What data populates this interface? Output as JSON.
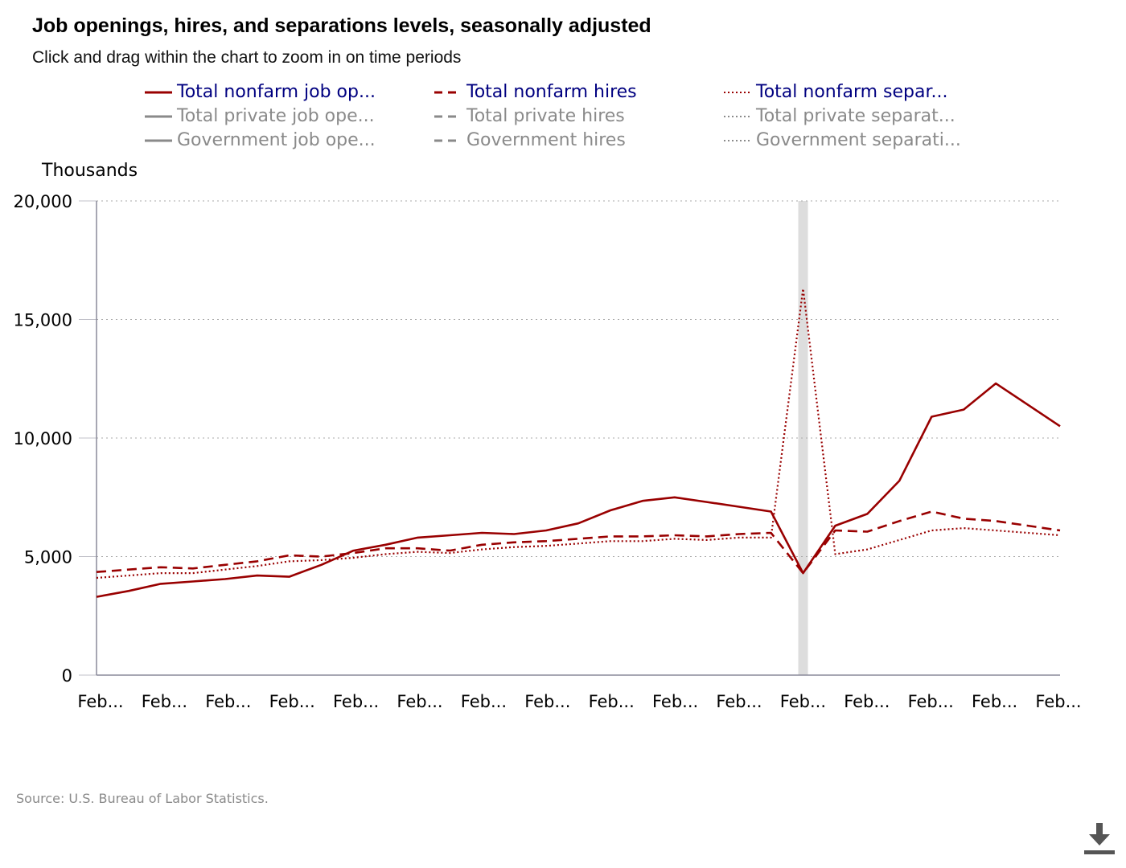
{
  "header": {
    "title": "Job openings, hires, and separations levels, seasonally adjusted",
    "subtitle": "Click and drag within the chart to zoom in on time periods"
  },
  "legend": [
    {
      "label": "Total nonfarm job op...",
      "dash": "solid",
      "active": true
    },
    {
      "label": "Total nonfarm hires",
      "dash": "dashed",
      "active": true
    },
    {
      "label": "Total nonfarm separ...",
      "dash": "dotted",
      "active": true
    },
    {
      "label": "Total private job ope...",
      "dash": "solid",
      "active": false
    },
    {
      "label": "Total private hires",
      "dash": "dashed",
      "active": false
    },
    {
      "label": "Total private separat...",
      "dash": "dotted",
      "active": false
    },
    {
      "label": "Government job ope...",
      "dash": "solid",
      "active": false
    },
    {
      "label": "Government hires",
      "dash": "dashed",
      "active": false
    },
    {
      "label": "Government separati...",
      "dash": "dotted",
      "active": false
    }
  ],
  "colors": {
    "series": "#990000",
    "active_legend": "#000080",
    "inactive_legend": "#8a8a8a",
    "recession": "#dddddd"
  },
  "footer": {
    "source": "Source: U.S. Bureau of Labor Statistics."
  },
  "icons": {
    "download": "download-icon"
  },
  "chart_data": {
    "type": "line",
    "ylabel": "Thousands",
    "ylim": [
      0,
      20000
    ],
    "yticks": [
      "0",
      "5,000",
      "10,000",
      "15,000",
      "20,000"
    ],
    "xticks": [
      "Feb...",
      "Feb...",
      "Feb...",
      "Feb...",
      "Feb...",
      "Feb...",
      "Feb...",
      "Feb...",
      "Feb...",
      "Feb...",
      "Feb...",
      "Feb...",
      "Feb...",
      "Feb...",
      "Feb...",
      "Feb..."
    ],
    "xlim": [
      2001.0,
      2016.0
    ],
    "grid": true,
    "recession": [
      2020.0,
      2020.17
    ],
    "series": [
      {
        "name": "Total nonfarm job openings",
        "dash": "solid",
        "x": [
          2001.0,
          2001.5,
          2002.0,
          2002.5,
          2003.0,
          2003.5,
          2004.0,
          2004.5,
          2005.0,
          2005.5,
          2006.0,
          2006.5,
          2007.0,
          2007.5,
          2008.0,
          2008.5,
          2009.0,
          2009.5,
          2010.0,
          2010.5,
          2011.0,
          2011.5,
          2012.0,
          2012.5,
          2013.0,
          2013.5,
          2014.0,
          2014.5,
          2015.0,
          2015.5,
          2016.0
        ],
        "y": [
          3300,
          3550,
          3850,
          3950,
          4050,
          4200,
          4150,
          4650,
          5250,
          5500,
          5800,
          5900,
          6000,
          5950,
          6100,
          6400,
          6950,
          7350,
          7500,
          7300,
          7100,
          6900,
          4300,
          6300,
          6800,
          8200,
          10900,
          11200,
          12300,
          11400,
          10500
        ]
      },
      {
        "name": "Total nonfarm hires",
        "dash": "dashed",
        "x": [
          2001.0,
          2001.5,
          2002.0,
          2002.5,
          2003.0,
          2003.5,
          2004.0,
          2004.5,
          2005.0,
          2005.5,
          2006.0,
          2006.5,
          2007.0,
          2007.5,
          2008.0,
          2008.5,
          2009.0,
          2009.5,
          2010.0,
          2010.5,
          2011.0,
          2011.5,
          2012.0,
          2012.5,
          2013.0,
          2013.5,
          2014.0,
          2014.5,
          2015.0,
          2015.5,
          2016.0
        ],
        "y": [
          4350,
          4450,
          4550,
          4500,
          4650,
          4800,
          5050,
          5000,
          5150,
          5350,
          5350,
          5250,
          5500,
          5600,
          5650,
          5750,
          5850,
          5850,
          5900,
          5850,
          5950,
          6000,
          4300,
          6100,
          6050,
          6500,
          6900,
          6600,
          6500,
          6300,
          6100
        ]
      },
      {
        "name": "Total nonfarm separations",
        "dash": "dotted",
        "x": [
          2001.0,
          2001.5,
          2002.0,
          2002.5,
          2003.0,
          2003.5,
          2004.0,
          2004.5,
          2005.0,
          2005.5,
          2006.0,
          2006.5,
          2007.0,
          2007.5,
          2008.0,
          2008.5,
          2009.0,
          2009.5,
          2010.0,
          2010.5,
          2011.0,
          2011.5,
          2012.0,
          2012.5,
          2013.0,
          2013.5,
          2014.0,
          2014.5,
          2015.0,
          2015.5,
          2016.0
        ],
        "y": [
          4100,
          4200,
          4300,
          4300,
          4450,
          4600,
          4800,
          4850,
          4950,
          5100,
          5200,
          5150,
          5300,
          5400,
          5450,
          5550,
          5650,
          5650,
          5750,
          5700,
          5800,
          5800,
          16300,
          5100,
          5300,
          5700,
          6100,
          6200,
          6100,
          6000,
          5900
        ]
      }
    ]
  }
}
